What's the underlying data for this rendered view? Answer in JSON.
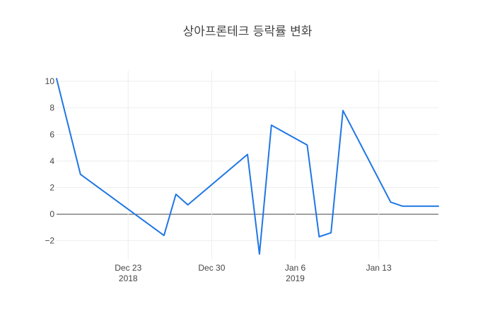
{
  "chart_data": {
    "type": "line",
    "title": "상아프론테크 등락률 변화",
    "xlabel": "",
    "ylabel": "",
    "x": [
      "2018-12-17",
      "2018-12-19",
      "2018-12-26",
      "2018-12-27",
      "2018-12-28",
      "2019-01-02",
      "2019-01-03",
      "2019-01-04",
      "2019-01-07",
      "2019-01-08",
      "2019-01-09",
      "2019-01-10",
      "2019-01-14",
      "2019-01-15",
      "2019-01-18"
    ],
    "series": [
      {
        "name": "",
        "values": [
          10.2,
          3.0,
          -1.6,
          1.5,
          0.7,
          4.5,
          -3.0,
          6.7,
          5.2,
          -1.7,
          -1.4,
          7.8,
          0.9,
          0.6,
          0.6
        ]
      }
    ],
    "xlim": [
      "2018-12-17",
      "2019-01-18"
    ],
    "ylim": [
      -3.4,
      10.8
    ],
    "yticks": [
      -2,
      0,
      2,
      4,
      6,
      8,
      10
    ],
    "ytick_labels": [
      "−2",
      "0",
      "2",
      "4",
      "6",
      "8",
      "10"
    ],
    "xticks": [
      "2018-12-23",
      "2018-12-30",
      "2019-01-06",
      "2019-01-13"
    ],
    "xtick_labels": [
      {
        "line1": "Dec 23",
        "line2": "2018"
      },
      {
        "line1": "Dec 30",
        "line2": ""
      },
      {
        "line1": "Jan 6",
        "line2": "2019"
      },
      {
        "line1": "Jan 13",
        "line2": ""
      }
    ],
    "grid": true,
    "legend": "none",
    "line_color": "#1f77e4",
    "zero_line_color": "#444444"
  }
}
